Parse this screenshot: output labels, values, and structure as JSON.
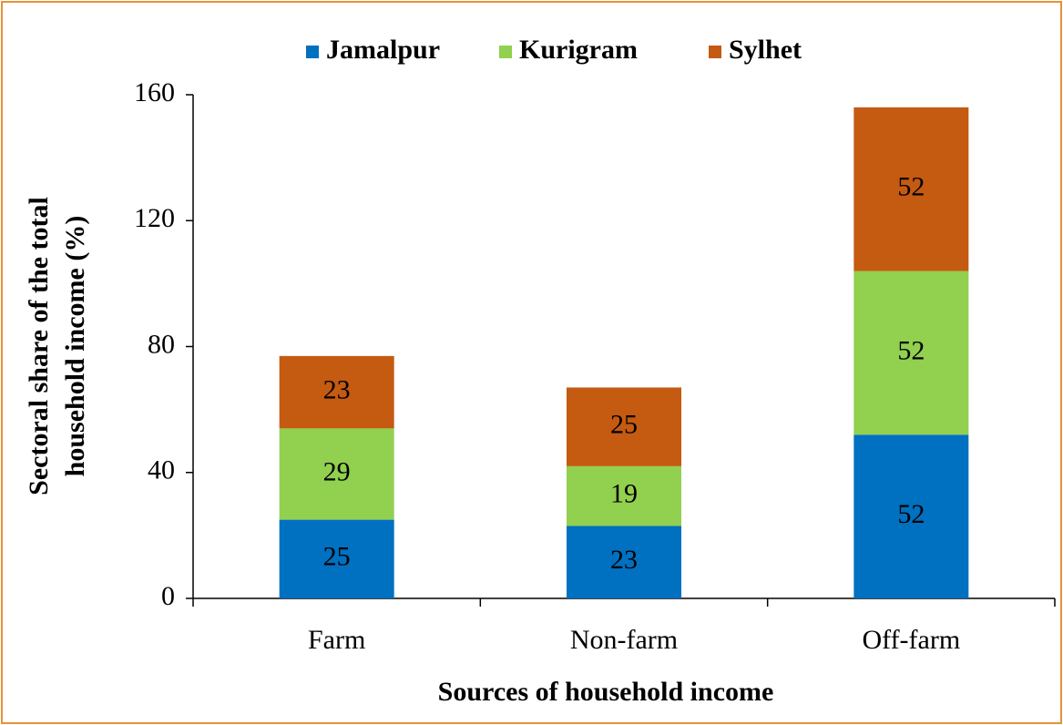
{
  "chart_data": {
    "type": "stacked_bar",
    "x_label": "Sources of household income",
    "y_label": [
      "Sectoral share of the total",
      "household income (%)"
    ],
    "categories": [
      "Farm",
      "Non-farm",
      "Off-farm"
    ],
    "series": [
      {
        "name": "Jamalpur",
        "color": "#0070c0",
        "values": [
          25,
          23,
          52
        ]
      },
      {
        "name": "Kurigram",
        "color": "#92d050",
        "values": [
          29,
          19,
          52
        ]
      },
      {
        "name": "Sylhet",
        "color": "#c55a11",
        "values": [
          23,
          25,
          52
        ]
      }
    ],
    "ylim": [
      0,
      160
    ],
    "yticks": [
      0,
      40,
      80,
      120,
      160
    ],
    "legend": "top",
    "grid": false
  }
}
